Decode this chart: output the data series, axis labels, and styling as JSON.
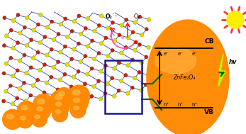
{
  "bg_color": "#ffffff",
  "orange": "#FF8800",
  "navy": "#1a1a8c",
  "bond_color": "#2233aa",
  "boron_color": "#DDDD00",
  "nitrogen_color": "#CC2200",
  "green": "#006600",
  "pink": "#FF44AA",
  "sun_color": "#FFEE00",
  "ray_color": "#FF3333",
  "bolt_color": "#AAFF00",
  "cb_label": "CB",
  "vb_label": "VB",
  "material_label": "ZnFe₂O₄",
  "hv_label": "hv",
  "o2_label": "O₂",
  "o2_radical_label": "O₂˙⁻",
  "e_label": "e⁻",
  "h_label": "h⁺"
}
